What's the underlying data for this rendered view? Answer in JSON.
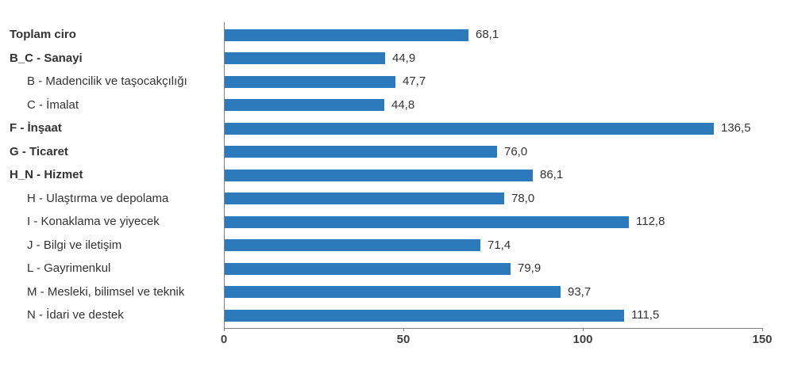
{
  "chart_data": {
    "type": "bar",
    "orientation": "horizontal",
    "title": "",
    "xlabel": "",
    "ylabel": "",
    "grid": false,
    "legend": null,
    "bar_color": "#2c79bc",
    "axis_color": "#808080",
    "text_color": "#333333",
    "xlim": [
      0,
      150
    ],
    "xticks": [
      {
        "value": 0,
        "label": "0"
      },
      {
        "value": 50,
        "label": "50"
      },
      {
        "value": 100,
        "label": "100"
      },
      {
        "value": 150,
        "label": "150"
      }
    ],
    "categories": [
      "Toplam ciro",
      "B_C - Sanayi",
      "B - Madencilik ve taşocakçılığı",
      "C - İmalat",
      "F - İnşaat",
      "G - Ticaret",
      "H_N - Hizmet",
      "H - Ulaştırma ve depolama",
      "I - Konaklama ve yiyecek",
      "J - Bilgi ve iletişim",
      "L - Gayrimenkul",
      "M - Mesleki, bilimsel ve teknik",
      "N - İdari ve destek"
    ],
    "values": [
      68.1,
      44.9,
      47.7,
      44.8,
      136.5,
      76.0,
      86.1,
      78.0,
      112.8,
      71.4,
      79.9,
      93.7,
      111.5
    ],
    "value_labels": [
      "68,1",
      "44,9",
      "47,7",
      "44,8",
      "136,5",
      "76,0",
      "86,1",
      "78,0",
      "112,8",
      "71,4",
      "79,9",
      "93,7",
      "111,5"
    ],
    "bold_rows": [
      true,
      true,
      false,
      false,
      true,
      true,
      true,
      false,
      false,
      false,
      false,
      false,
      false
    ],
    "indent_rows": [
      false,
      false,
      true,
      true,
      false,
      false,
      false,
      true,
      true,
      true,
      true,
      true,
      true
    ]
  }
}
